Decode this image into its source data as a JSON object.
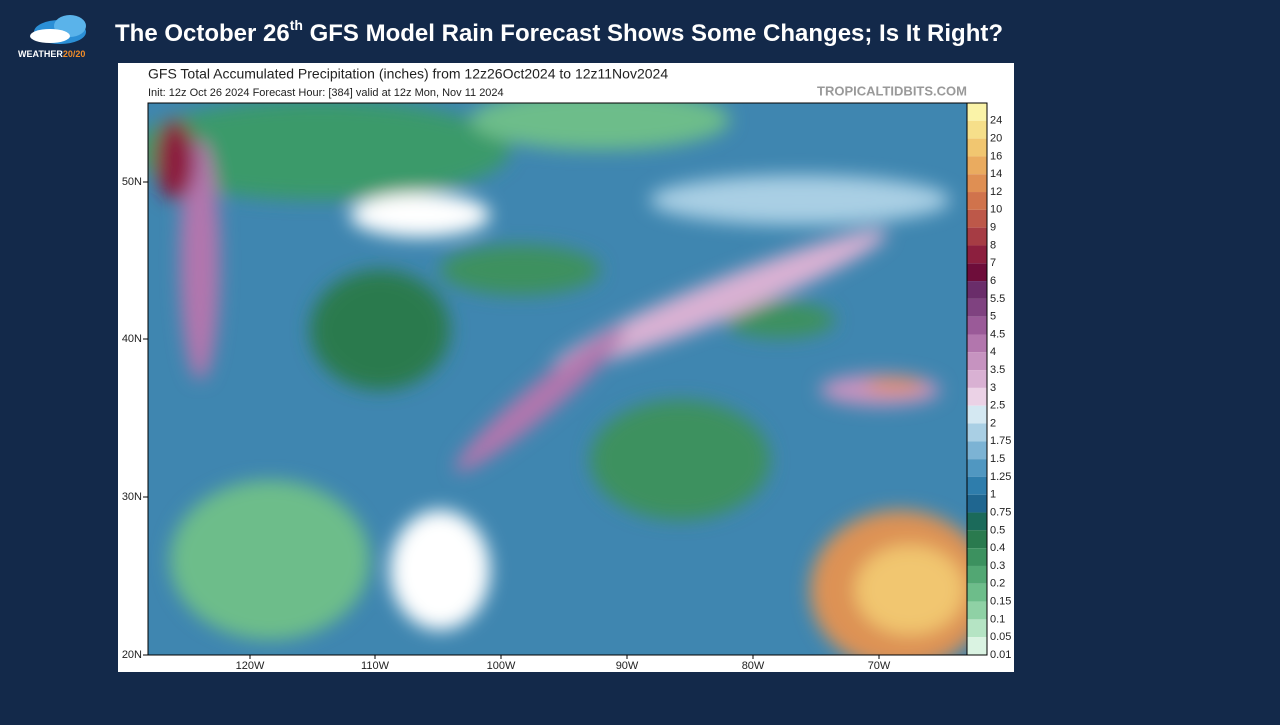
{
  "header": {
    "logo": {
      "word": "WEATHER",
      "number": "20/20"
    },
    "title": {
      "before": "The October 26",
      "superscript": "th",
      "after": " GFS Model Rain Forecast Shows Some Changes; Is It Right?"
    }
  },
  "map": {
    "title": "GFS Total Accumulated Precipitation (inches) from 12z26Oct2024 to 12z11Nov2024",
    "subtitle": "Init: 12z Oct 26 2024   Forecast Hour: [384]   valid at 12z Mon, Nov 11 2024",
    "credit": "TROPICALTIDBITS.COM",
    "latitude_labels": [
      "50N",
      "40N",
      "30N",
      "20N"
    ],
    "longitude_labels": [
      "120W",
      "110W",
      "100W",
      "90W",
      "80W",
      "70W"
    ],
    "colorbar": [
      {
        "label": "24",
        "color": "#faf3a8"
      },
      {
        "label": "20",
        "color": "#f6df8a"
      },
      {
        "label": "16",
        "color": "#f1c670"
      },
      {
        "label": "14",
        "color": "#eaab5f"
      },
      {
        "label": "12",
        "color": "#df8f53"
      },
      {
        "label": "10",
        "color": "#d0734c"
      },
      {
        "label": "9",
        "color": "#bd5849"
      },
      {
        "label": "8",
        "color": "#a63c44"
      },
      {
        "label": "7",
        "color": "#8c1f3e"
      },
      {
        "label": "6",
        "color": "#6e0d3a"
      },
      {
        "label": "5.5",
        "color": "#6a2d6a"
      },
      {
        "label": "5",
        "color": "#7f4280"
      },
      {
        "label": "4.5",
        "color": "#9a5a98"
      },
      {
        "label": "4",
        "color": "#b276ad"
      },
      {
        "label": "3.5",
        "color": "#c693c0"
      },
      {
        "label": "3",
        "color": "#d9b1d3"
      },
      {
        "label": "2.5",
        "color": "#ebd2e6"
      },
      {
        "label": "2",
        "color": "#d4e8f2"
      },
      {
        "label": "1.75",
        "color": "#a9cfe4"
      },
      {
        "label": "1.5",
        "color": "#7cb3d4"
      },
      {
        "label": "1.25",
        "color": "#5097c1"
      },
      {
        "label": "1",
        "color": "#2e7dac"
      },
      {
        "label": "0.75",
        "color": "#1f6690"
      },
      {
        "label": "0.5",
        "color": "#1b6a5a"
      },
      {
        "label": "0.4",
        "color": "#2a7a4e"
      },
      {
        "label": "0.3",
        "color": "#3c915f"
      },
      {
        "label": "0.2",
        "color": "#52a773"
      },
      {
        "label": "0.15",
        "color": "#6dbd8a"
      },
      {
        "label": "0.1",
        "color": "#8fd1a5"
      },
      {
        "label": "0.05",
        "color": "#b5e4c4"
      },
      {
        "label": "0.01",
        "color": "#daf3e2"
      }
    ]
  }
}
